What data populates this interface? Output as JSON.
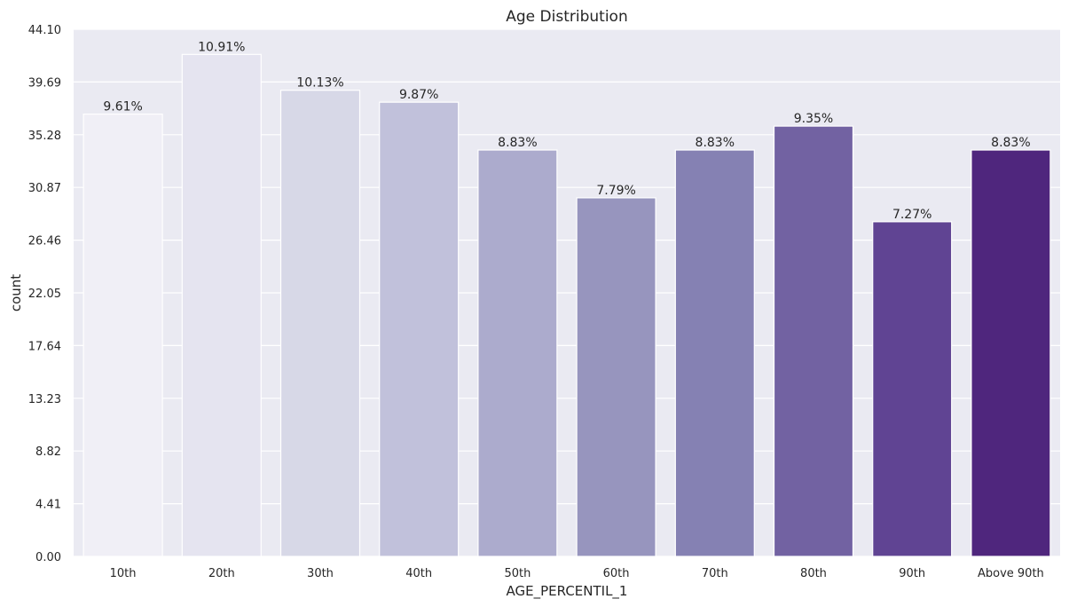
{
  "chart_data": {
    "type": "bar",
    "title": "Age Distribution",
    "xlabel": "AGE_PERCENTIL_1",
    "ylabel": "count",
    "categories": [
      "10th",
      "20th",
      "30th",
      "40th",
      "50th",
      "60th",
      "70th",
      "80th",
      "90th",
      "Above 90th"
    ],
    "values": [
      37,
      42,
      39,
      38,
      34,
      30,
      34,
      36,
      28,
      34
    ],
    "data_labels": [
      "9.61%",
      "10.91%",
      "10.13%",
      "9.87%",
      "8.83%",
      "7.79%",
      "8.83%",
      "9.35%",
      "7.27%",
      "8.83%"
    ],
    "ylim": [
      0,
      44.1
    ],
    "yticks": [
      "0.00",
      "4.41",
      "8.82",
      "13.23",
      "17.64",
      "22.05",
      "26.46",
      "30.87",
      "35.28",
      "39.69",
      "44.10"
    ],
    "grid": true,
    "colors": [
      "#f0eff6",
      "#e5e4f0",
      "#d7d8e7",
      "#c1c1db",
      "#acabcd",
      "#9795be",
      "#8581b3",
      "#7262a2",
      "#604493",
      "#4f267d"
    ],
    "plot_background": "#eaeaf2",
    "grid_color": "#ffffff"
  }
}
